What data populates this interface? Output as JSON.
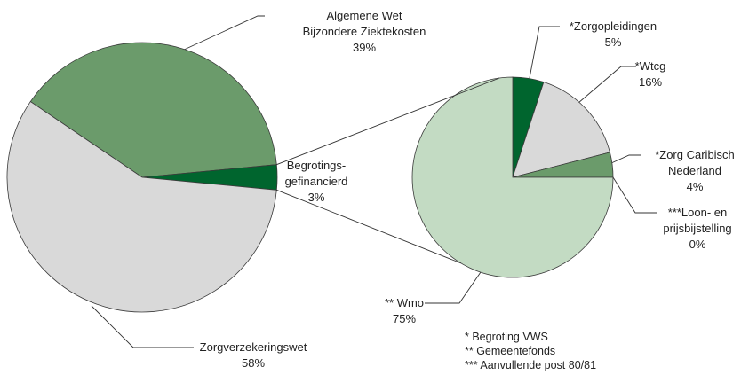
{
  "chart_data": [
    {
      "type": "pie",
      "categories": [
        "Algemene Wet Bijzondere Ziektekosten",
        "Begrotings-gefinancierd",
        "Zorgverzekeringswet"
      ],
      "values": [
        39,
        3,
        58
      ],
      "value_labels": [
        "39%",
        "3%",
        "58%"
      ],
      "colors": [
        "#6b9b6b",
        "#00652e",
        "#d9d9d9"
      ]
    },
    {
      "type": "pie",
      "categories": [
        "*Zorgopleidingen",
        "*Wtcg",
        "*Zorg Caribisch Nederland",
        "***Loon- en prijsbijstelling",
        "** Wmo"
      ],
      "values": [
        5,
        16,
        4,
        0,
        75
      ],
      "value_labels": [
        "5%",
        "16%",
        "4%",
        "0%",
        "75%"
      ],
      "colors": [
        "#00652e",
        "#d9d9d9",
        "#6b9b6b",
        "#00652e",
        "#c3dbc3"
      ]
    }
  ],
  "notes": [
    "* Begroting VWS",
    "** Gemeentefonds",
    "*** Aanvullende post 80/81"
  ]
}
